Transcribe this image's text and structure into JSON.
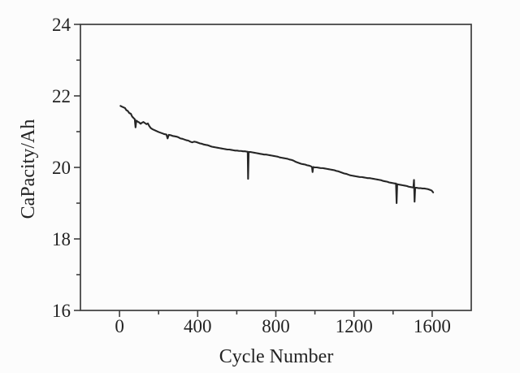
{
  "figure": {
    "background": "#fcfcfc"
  },
  "chart_data": {
    "type": "line",
    "title": "",
    "xlabel": "Cycle Number",
    "ylabel": "CaPacity/Ah",
    "xlim": [
      -200,
      1800
    ],
    "ylim": [
      16,
      24
    ],
    "grid": false,
    "legend": null,
    "x_major_tick_values": [
      0,
      400,
      800,
      1200,
      1600
    ],
    "x_major_tick_labels": [
      "0",
      "400",
      "800",
      "1200",
      "1600"
    ],
    "x_minor_tick_values": [
      200,
      600,
      1000,
      1400
    ],
    "y_major_tick_values": [
      16,
      18,
      20,
      22,
      24
    ],
    "y_major_tick_labels": [
      "16",
      "18",
      "20",
      "22",
      "24"
    ],
    "y_minor_tick_values": [
      17,
      19,
      21,
      23
    ],
    "styles": {
      "line_color": "#262626",
      "axis_color": "#3d3d3d",
      "text_color": "#232323",
      "background": "#fcfcfc"
    },
    "series": [
      {
        "name": "capacity",
        "points": [
          [
            5,
            21.72
          ],
          [
            12,
            21.7
          ],
          [
            20,
            21.68
          ],
          [
            28,
            21.66
          ],
          [
            35,
            21.6
          ],
          [
            42,
            21.58
          ],
          [
            50,
            21.52
          ],
          [
            58,
            21.5
          ],
          [
            65,
            21.42
          ],
          [
            72,
            21.38
          ],
          [
            78,
            21.35
          ],
          [
            82,
            21.12
          ],
          [
            86,
            21.31
          ],
          [
            93,
            21.28
          ],
          [
            100,
            21.26
          ],
          [
            108,
            21.22
          ],
          [
            115,
            21.25
          ],
          [
            122,
            21.27
          ],
          [
            130,
            21.24
          ],
          [
            138,
            21.21
          ],
          [
            145,
            21.23
          ],
          [
            152,
            21.16
          ],
          [
            160,
            21.1
          ],
          [
            168,
            21.07
          ],
          [
            176,
            21.05
          ],
          [
            184,
            21.03
          ],
          [
            192,
            21.01
          ],
          [
            200,
            20.99
          ],
          [
            210,
            20.97
          ],
          [
            220,
            20.95
          ],
          [
            230,
            20.93
          ],
          [
            240,
            20.92
          ],
          [
            246,
            20.81
          ],
          [
            252,
            20.91
          ],
          [
            262,
            20.9
          ],
          [
            272,
            20.88
          ],
          [
            282,
            20.87
          ],
          [
            292,
            20.86
          ],
          [
            302,
            20.84
          ],
          [
            312,
            20.81
          ],
          [
            322,
            20.8
          ],
          [
            332,
            20.78
          ],
          [
            342,
            20.76
          ],
          [
            352,
            20.75
          ],
          [
            362,
            20.72
          ],
          [
            372,
            20.7
          ],
          [
            382,
            20.72
          ],
          [
            392,
            20.71
          ],
          [
            402,
            20.69
          ],
          [
            412,
            20.67
          ],
          [
            422,
            20.66
          ],
          [
            432,
            20.64
          ],
          [
            442,
            20.63
          ],
          [
            452,
            20.62
          ],
          [
            462,
            20.6
          ],
          [
            472,
            20.58
          ],
          [
            482,
            20.57
          ],
          [
            492,
            20.56
          ],
          [
            502,
            20.55
          ],
          [
            512,
            20.54
          ],
          [
            522,
            20.53
          ],
          [
            532,
            20.52
          ],
          [
            542,
            20.51
          ],
          [
            552,
            20.5
          ],
          [
            562,
            20.5
          ],
          [
            572,
            20.49
          ],
          [
            582,
            20.48
          ],
          [
            592,
            20.47
          ],
          [
            602,
            20.47
          ],
          [
            612,
            20.46
          ],
          [
            622,
            20.46
          ],
          [
            632,
            20.45
          ],
          [
            642,
            20.45
          ],
          [
            652,
            20.44
          ],
          [
            656,
            20.44
          ],
          [
            658,
            19.68
          ],
          [
            661,
            20.43
          ],
          [
            670,
            20.43
          ],
          [
            680,
            20.42
          ],
          [
            690,
            20.41
          ],
          [
            700,
            20.4
          ],
          [
            710,
            20.39
          ],
          [
            720,
            20.38
          ],
          [
            730,
            20.37
          ],
          [
            740,
            20.36
          ],
          [
            750,
            20.36
          ],
          [
            760,
            20.35
          ],
          [
            770,
            20.34
          ],
          [
            780,
            20.33
          ],
          [
            790,
            20.32
          ],
          [
            800,
            20.31
          ],
          [
            810,
            20.3
          ],
          [
            820,
            20.28
          ],
          [
            830,
            20.27
          ],
          [
            840,
            20.26
          ],
          [
            850,
            20.25
          ],
          [
            860,
            20.24
          ],
          [
            870,
            20.22
          ],
          [
            880,
            20.21
          ],
          [
            890,
            20.19
          ],
          [
            900,
            20.16
          ],
          [
            910,
            20.14
          ],
          [
            920,
            20.12
          ],
          [
            930,
            20.1
          ],
          [
            940,
            20.09
          ],
          [
            950,
            20.08
          ],
          [
            960,
            20.06
          ],
          [
            970,
            20.05
          ],
          [
            980,
            20.03
          ],
          [
            985,
            20.01
          ],
          [
            988,
            19.87
          ],
          [
            991,
            20.01
          ],
          [
            1000,
            20.0
          ],
          [
            1010,
            20.0
          ],
          [
            1020,
            19.99
          ],
          [
            1030,
            19.98
          ],
          [
            1040,
            19.98
          ],
          [
            1050,
            19.97
          ],
          [
            1060,
            19.96
          ],
          [
            1070,
            19.95
          ],
          [
            1080,
            19.94
          ],
          [
            1090,
            19.93
          ],
          [
            1100,
            19.92
          ],
          [
            1110,
            19.9
          ],
          [
            1120,
            19.89
          ],
          [
            1130,
            19.87
          ],
          [
            1140,
            19.85
          ],
          [
            1150,
            19.83
          ],
          [
            1160,
            19.82
          ],
          [
            1170,
            19.8
          ],
          [
            1180,
            19.78
          ],
          [
            1190,
            19.77
          ],
          [
            1200,
            19.76
          ],
          [
            1210,
            19.75
          ],
          [
            1220,
            19.74
          ],
          [
            1230,
            19.73
          ],
          [
            1240,
            19.73
          ],
          [
            1250,
            19.72
          ],
          [
            1260,
            19.71
          ],
          [
            1270,
            19.7
          ],
          [
            1280,
            19.7
          ],
          [
            1290,
            19.69
          ],
          [
            1300,
            19.68
          ],
          [
            1310,
            19.67
          ],
          [
            1320,
            19.66
          ],
          [
            1330,
            19.65
          ],
          [
            1340,
            19.64
          ],
          [
            1350,
            19.62
          ],
          [
            1360,
            19.61
          ],
          [
            1370,
            19.6
          ],
          [
            1380,
            19.58
          ],
          [
            1390,
            19.57
          ],
          [
            1400,
            19.56
          ],
          [
            1410,
            19.55
          ],
          [
            1415,
            19.55
          ],
          [
            1418,
            19.0
          ],
          [
            1421,
            19.53
          ],
          [
            1430,
            19.52
          ],
          [
            1440,
            19.51
          ],
          [
            1450,
            19.5
          ],
          [
            1460,
            19.49
          ],
          [
            1470,
            19.48
          ],
          [
            1480,
            19.46
          ],
          [
            1490,
            19.45
          ],
          [
            1500,
            19.44
          ],
          [
            1504,
            19.44
          ],
          [
            1507,
            19.65
          ],
          [
            1510,
            19.04
          ],
          [
            1513,
            19.43
          ],
          [
            1520,
            19.43
          ],
          [
            1530,
            19.42
          ],
          [
            1540,
            19.42
          ],
          [
            1550,
            19.41
          ],
          [
            1560,
            19.41
          ],
          [
            1570,
            19.4
          ],
          [
            1580,
            19.39
          ],
          [
            1590,
            19.37
          ],
          [
            1598,
            19.35
          ],
          [
            1605,
            19.3
          ]
        ]
      }
    ]
  }
}
